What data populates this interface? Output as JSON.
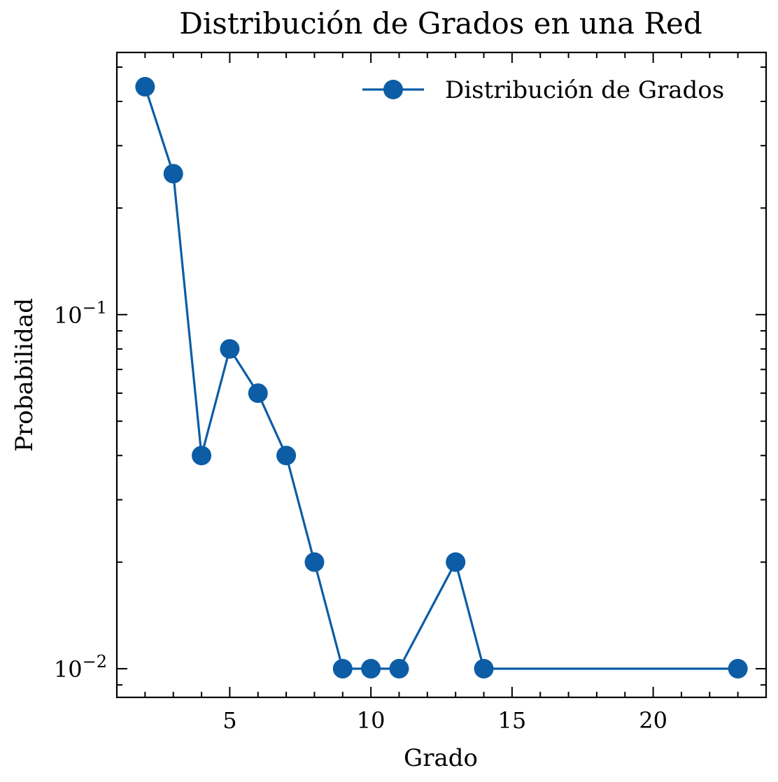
{
  "chart_data": {
    "type": "line",
    "title": "Distribución de Grados en una Red",
    "xlabel": "Grado",
    "ylabel": "Probabilidad",
    "yscale": "log",
    "xlim": [
      1,
      24
    ],
    "ylim": [
      0.0083,
      0.55
    ],
    "xticks": [
      5,
      10,
      15,
      20
    ],
    "xtick_labels": [
      "5",
      "10",
      "15",
      "20"
    ],
    "yticks": [
      0.1,
      0.01
    ],
    "ytick_labels": [
      {
        "base": "10",
        "exp": "−1"
      },
      {
        "base": "10",
        "exp": "−2"
      }
    ],
    "grid": false,
    "legend": "top-right",
    "series": [
      {
        "name": "Distribución de Grados",
        "color": "#0c5da5",
        "marker": "circle",
        "x": [
          2,
          3,
          4,
          5,
          6,
          7,
          8,
          9,
          10,
          11,
          13,
          14,
          23
        ],
        "y": [
          0.44,
          0.25,
          0.04,
          0.08,
          0.06,
          0.04,
          0.02,
          0.01,
          0.01,
          0.01,
          0.02,
          0.01,
          0.01
        ]
      }
    ]
  }
}
